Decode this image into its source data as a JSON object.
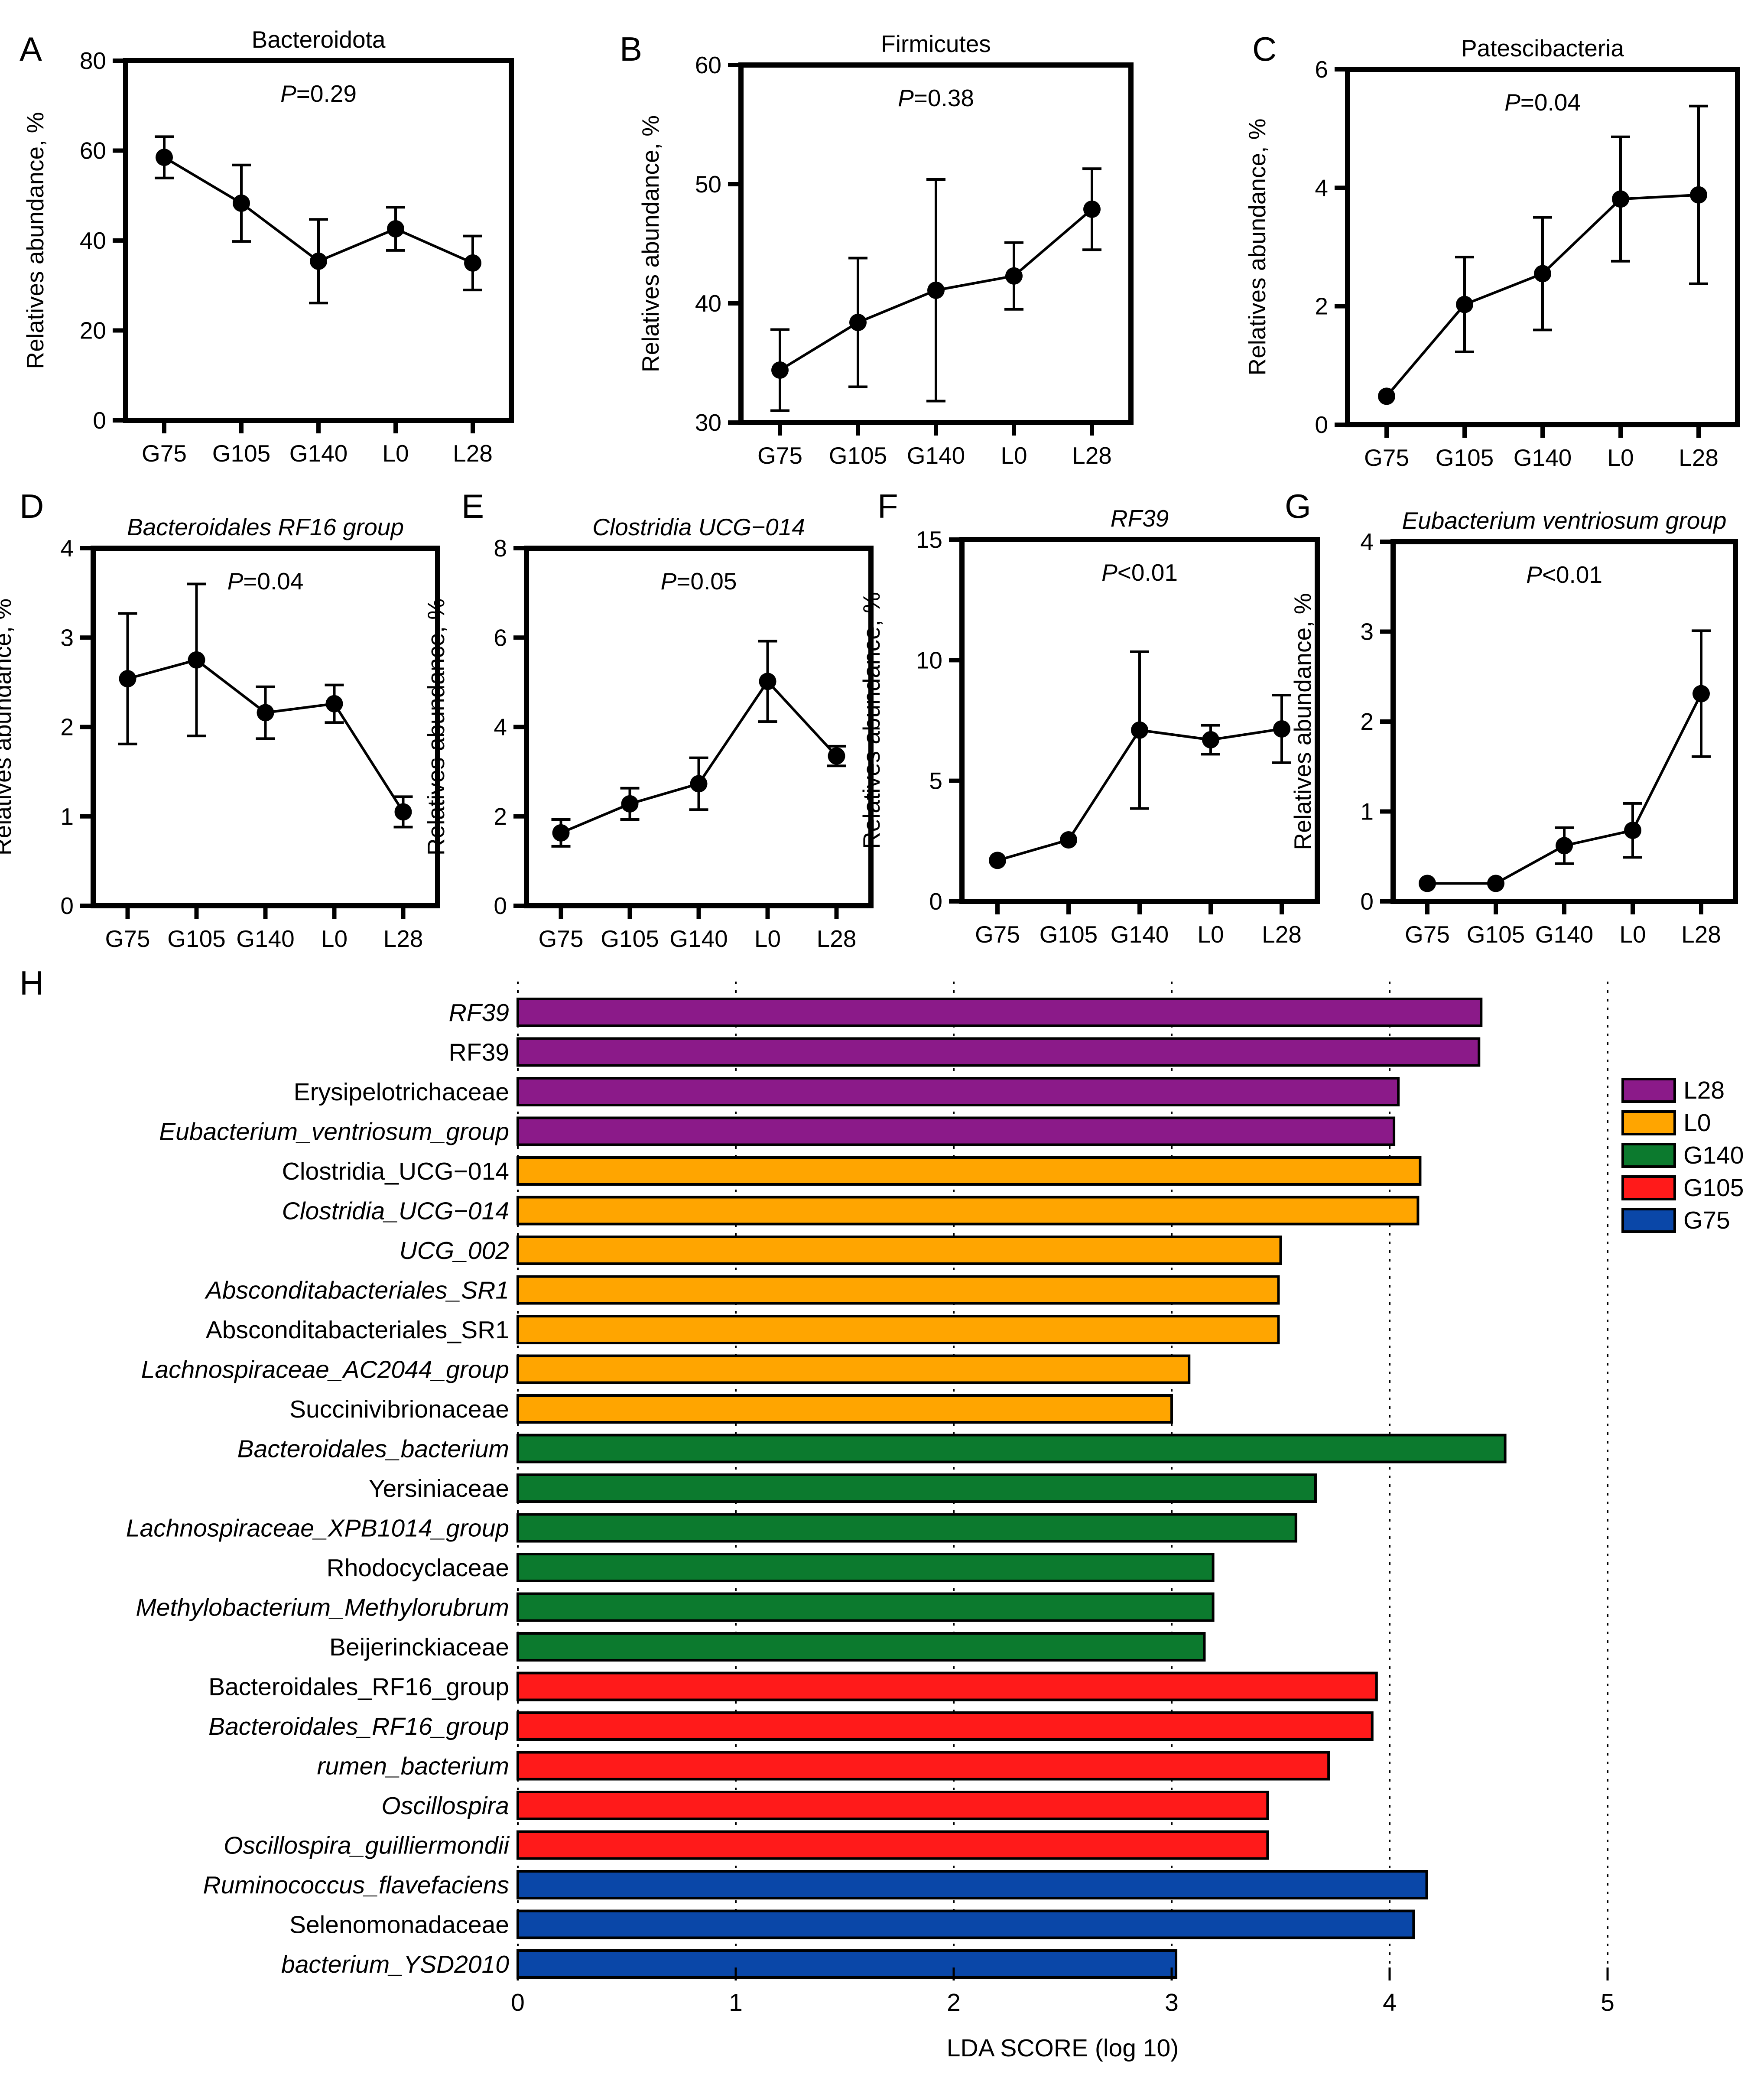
{
  "chart_data": [
    {
      "panel": "A",
      "type": "line",
      "title": "Bacteroidota",
      "title_italic": false,
      "p_prefix": "P",
      "p_suffix": "=0.29",
      "ylabel": "Relatives abundance, %",
      "xlabel": "",
      "categories": [
        "G75",
        "G105",
        "G140",
        "L0",
        "L28"
      ],
      "values": [
        58.5,
        48.3,
        35.4,
        42.6,
        35.0
      ],
      "errors": [
        4.6,
        8.5,
        9.3,
        4.8,
        6.0
      ],
      "ylim": [
        0,
        80
      ],
      "yticks": [
        0,
        20,
        40,
        60,
        80
      ],
      "ytick_labels": [
        "0",
        "20",
        "40",
        "60",
        "80"
      ]
    },
    {
      "panel": "B",
      "type": "line",
      "title": "Firmicutes",
      "title_italic": false,
      "p_prefix": "P",
      "p_suffix": "=0.38",
      "ylabel": "Relatives abundance, %",
      "xlabel": "",
      "categories": [
        "G75",
        "G105",
        "G140",
        "L0",
        "L28"
      ],
      "values": [
        34.4,
        38.4,
        41.1,
        42.3,
        47.9
      ],
      "errors": [
        3.4,
        5.4,
        9.3,
        2.8,
        3.4
      ],
      "ylim": [
        30,
        60
      ],
      "yticks": [
        30,
        40,
        50,
        60
      ],
      "ytick_labels": [
        "30",
        "40",
        "50",
        "60"
      ]
    },
    {
      "panel": "C",
      "type": "line",
      "title": "Patescibacteria",
      "title_italic": false,
      "p_prefix": "P",
      "p_suffix": "=0.04",
      "ylabel": "Relatives abundance, %",
      "xlabel": "",
      "categories": [
        "G75",
        "G105",
        "G140",
        "L0",
        "L28"
      ],
      "values": [
        0.48,
        2.03,
        2.55,
        3.81,
        3.88
      ],
      "errors": [
        0.0,
        0.8,
        0.95,
        1.05,
        1.5
      ],
      "ylim": [
        0,
        6
      ],
      "yticks": [
        0,
        2,
        4,
        6
      ],
      "ytick_labels": [
        "0",
        "2",
        "4",
        "6"
      ]
    },
    {
      "panel": "D",
      "type": "line",
      "title": "Bacteroidales RF16 group",
      "title_italic": true,
      "p_prefix": "P",
      "p_suffix": "=0.04",
      "ylabel": "Relatives abundance, %",
      "xlabel": "",
      "categories": [
        "G75",
        "G105",
        "G140",
        "L0",
        "L28"
      ],
      "values": [
        2.54,
        2.75,
        2.16,
        2.26,
        1.05
      ],
      "errors": [
        0.73,
        0.85,
        0.29,
        0.21,
        0.17
      ],
      "ylim": [
        0,
        4
      ],
      "yticks": [
        0,
        1,
        2,
        3,
        4
      ],
      "ytick_labels": [
        "0",
        "1",
        "2",
        "3",
        "4"
      ]
    },
    {
      "panel": "E",
      "type": "line",
      "title": "Clostridia UCG−014",
      "title_italic": true,
      "p_prefix": "P",
      "p_suffix": "=0.05",
      "ylabel": "Relatives abundance, %",
      "xlabel": "",
      "categories": [
        "G75",
        "G105",
        "G140",
        "L0",
        "L28"
      ],
      "values": [
        1.63,
        2.28,
        2.73,
        5.02,
        3.35
      ],
      "errors": [
        0.3,
        0.35,
        0.58,
        0.9,
        0.22
      ],
      "ylim": [
        0,
        8
      ],
      "yticks": [
        0,
        2,
        4,
        6,
        8
      ],
      "ytick_labels": [
        "0",
        "2",
        "4",
        "6",
        "8"
      ]
    },
    {
      "panel": "F",
      "type": "line",
      "title": "RF39",
      "title_italic": true,
      "p_prefix": "P",
      "p_suffix": "<0.01",
      "ylabel": "Relatives abundance, %",
      "xlabel": "",
      "categories": [
        "G75",
        "G105",
        "G140",
        "L0",
        "L28"
      ],
      "values": [
        1.7,
        2.55,
        7.1,
        6.7,
        7.15
      ],
      "errors": [
        0.0,
        0.0,
        3.25,
        0.6,
        1.4
      ],
      "ylim": [
        0,
        15
      ],
      "yticks": [
        0,
        5,
        10,
        15
      ],
      "ytick_labels": [
        "0",
        "5",
        "10",
        "15"
      ]
    },
    {
      "panel": "G",
      "type": "line",
      "title": "Eubacterium ventriosum group",
      "title_italic": true,
      "p_prefix": "P",
      "p_suffix": "<0.01",
      "ylabel": "Relatives abundance, %",
      "xlabel": "",
      "categories": [
        "G75",
        "G105",
        "G140",
        "L0",
        "L28"
      ],
      "values": [
        0.2,
        0.2,
        0.62,
        0.79,
        2.31
      ],
      "errors": [
        0.0,
        0.0,
        0.2,
        0.3,
        0.7
      ],
      "ylim": [
        0,
        4
      ],
      "yticks": [
        0,
        1,
        2,
        3,
        4
      ],
      "ytick_labels": [
        "0",
        "1",
        "2",
        "3",
        "4"
      ]
    },
    {
      "panel": "H",
      "type": "bar",
      "orientation": "horizontal",
      "xlabel": "LDA SCORE (log 10)",
      "xlim": [
        0,
        5.5
      ],
      "xticks": [
        0,
        1,
        2,
        3,
        4,
        5
      ],
      "xtick_labels": [
        "0",
        "1",
        "2",
        "3",
        "4",
        "5"
      ],
      "grid": "dotted vertical at 1, 2, 3, 4, 5",
      "legend_position": "right",
      "legend": [
        {
          "name": "L28",
          "color": "#8B1A89"
        },
        {
          "name": "L0",
          "color": "#FFA500"
        },
        {
          "name": "G140",
          "color": "#0C7A2E"
        },
        {
          "name": "G105",
          "color": "#FF1A1A"
        },
        {
          "name": "G75",
          "color": "#0A47A8"
        }
      ],
      "bars": [
        {
          "label": "RF39",
          "italic": true,
          "group": "L28",
          "value": 4.42
        },
        {
          "label": "RF39",
          "italic": false,
          "group": "L28",
          "value": 4.41
        },
        {
          "label": "Erysipelotrichaceae",
          "italic": false,
          "group": "L28",
          "value": 4.04
        },
        {
          "label": "Eubacterium_ventriosum_group",
          "italic": true,
          "group": "L28",
          "value": 4.02
        },
        {
          "label": "Clostridia_UCG−014",
          "italic": false,
          "group": "L0",
          "value": 4.14
        },
        {
          "label": "Clostridia_UCG−014",
          "italic": true,
          "group": "L0",
          "value": 4.13
        },
        {
          "label": "UCG_002",
          "italic": true,
          "group": "L0",
          "value": 3.5
        },
        {
          "label": "Absconditabacteriales_SR1",
          "italic": true,
          "group": "L0",
          "value": 3.49
        },
        {
          "label": "Absconditabacteriales_SR1",
          "italic": false,
          "group": "L0",
          "value": 3.49
        },
        {
          "label": "Lachnospiraceae_AC2044_group",
          "italic": true,
          "group": "L0",
          "value": 3.08
        },
        {
          "label": "Succinivibrionaceae",
          "italic": false,
          "group": "L0",
          "value": 3.0
        },
        {
          "label": "Bacteroidales_bacterium",
          "italic": true,
          "group": "G140",
          "value": 4.53
        },
        {
          "label": "Yersiniaceae",
          "italic": false,
          "group": "G140",
          "value": 3.66
        },
        {
          "label": "Lachnospiraceae_XPB1014_group",
          "italic": true,
          "group": "G140",
          "value": 3.57
        },
        {
          "label": "Rhodocyclaceae",
          "italic": false,
          "group": "G140",
          "value": 3.19
        },
        {
          "label": "Methylobacterium_Methylorubrum",
          "italic": true,
          "group": "G140",
          "value": 3.19
        },
        {
          "label": "Beijerinckiaceae",
          "italic": false,
          "group": "G140",
          "value": 3.15
        },
        {
          "label": "Bacteroidales_RF16_group",
          "italic": false,
          "group": "G105",
          "value": 3.94
        },
        {
          "label": "Bacteroidales_RF16_group",
          "italic": true,
          "group": "G105",
          "value": 3.92
        },
        {
          "label": "rumen_bacterium",
          "italic": true,
          "group": "G105",
          "value": 3.72
        },
        {
          "label": "Oscillospira",
          "italic": true,
          "group": "G105",
          "value": 3.44
        },
        {
          "label": "Oscillospira_guilliermondii",
          "italic": true,
          "group": "G105",
          "value": 3.44
        },
        {
          "label": "Ruminococcus_flavefaciens",
          "italic": true,
          "group": "G75",
          "value": 4.17
        },
        {
          "label": "Selenomonadaceae",
          "italic": false,
          "group": "G75",
          "value": 4.11
        },
        {
          "label": "bacterium_YSD2010",
          "italic": true,
          "group": "G75",
          "value": 3.02
        }
      ]
    }
  ]
}
